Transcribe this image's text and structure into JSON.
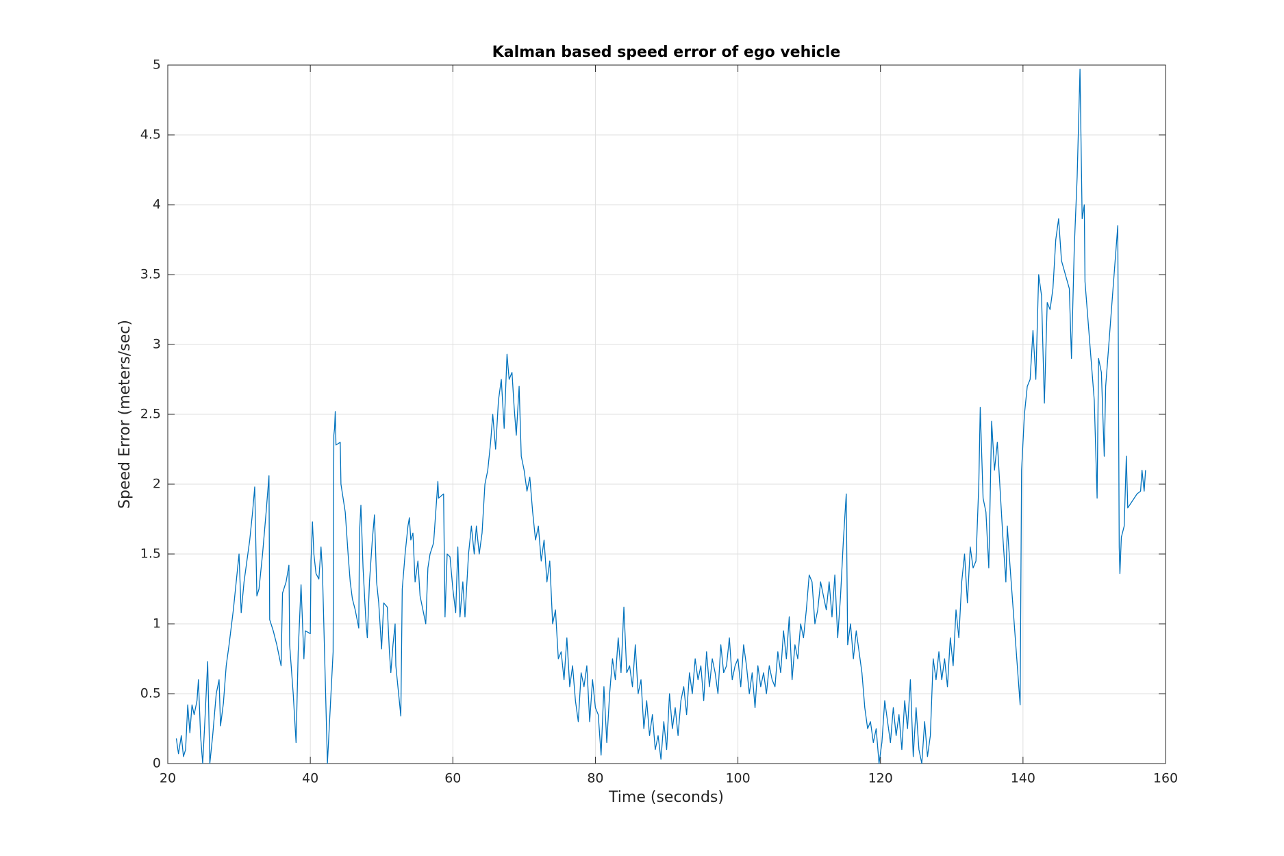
{
  "chart_data": {
    "type": "line",
    "title": "Kalman based speed error of ego vehicle",
    "x_label": "Time (seconds)",
    "y_label": "Speed Error (meters/sec)",
    "color": "#0072bd",
    "grid": true,
    "xlim": [
      20,
      160
    ],
    "xticks": [
      20,
      40,
      60,
      80,
      100,
      120,
      140,
      160
    ],
    "ylim": [
      0,
      5
    ],
    "yticks": [
      0,
      0.5,
      1,
      1.5,
      2,
      2.5,
      3,
      3.5,
      4,
      4.5,
      5
    ],
    "x": [
      21.2,
      21.5,
      21.9,
      22.2,
      22.5,
      22.8,
      23.1,
      23.4,
      23.7,
      24.1,
      24.3,
      24.6,
      24.9,
      25.2,
      25.6,
      25.9,
      26.3,
      26.8,
      27.2,
      27.4,
      27.8,
      28.2,
      28.6,
      29.2,
      29.6,
      30,
      30.3,
      30.7,
      31.1,
      31.5,
      31.9,
      32.2,
      32.5,
      32.8,
      33.3,
      33.8,
      34.2,
      34.3,
      34.8,
      35.3,
      35.9,
      36.1,
      36.6,
      37,
      37.1,
      37.6,
      38,
      38.3,
      38.7,
      39.1,
      39.3,
      40,
      40.1,
      40.3,
      40.5,
      40.8,
      41.2,
      41.5,
      41.7,
      42.3,
      42.4,
      42.9,
      43.2,
      43.3,
      43.4,
      43.5,
      43.6,
      44.2,
      44.3,
      44.9,
      45.3,
      45.6,
      45.9,
      46.3,
      46.8,
      46.9,
      47.1,
      47.4,
      47.8,
      48,
      48.3,
      48.7,
      49,
      49.3,
      49.6,
      50,
      50.3,
      50.8,
      51.1,
      51.3,
      51.6,
      51.9,
      52,
      52.7,
      52.9,
      53.3,
      53.7,
      53.9,
      54.1,
      54.4,
      54.7,
      55.1,
      55.4,
      55.8,
      56.2,
      56.5,
      56.8,
      57.3,
      57.6,
      57.9,
      58,
      58.7,
      58.9,
      59.2,
      59.6,
      60,
      60.4,
      60.7,
      61,
      61.4,
      61.7,
      62.2,
      62.6,
      63,
      63.3,
      63.7,
      64.1,
      64.5,
      64.9,
      65.3,
      65.6,
      66,
      66.4,
      66.8,
      67.2,
      67.6,
      67.9,
      68.3,
      68.6,
      68.9,
      69.3,
      69.6,
      70,
      70.4,
      70.8,
      71.2,
      71.6,
      72,
      72.4,
      72.8,
      73.2,
      73.6,
      74,
      74.4,
      74.8,
      75.2,
      75.6,
      76,
      76.4,
      76.8,
      77.2,
      77.6,
      78,
      78.4,
      78.8,
      79.2,
      79.6,
      80,
      80.4,
      80.8,
      81.2,
      81.6,
      82,
      82.4,
      82.8,
      83.2,
      83.6,
      84,
      84.4,
      84.8,
      85.2,
      85.6,
      86,
      86.4,
      86.8,
      87.2,
      87.6,
      88,
      88.4,
      88.8,
      89.2,
      89.6,
      90,
      90.4,
      90.8,
      91.2,
      91.6,
      92,
      92.4,
      92.8,
      93.2,
      93.6,
      94,
      94.4,
      94.8,
      95.2,
      95.6,
      96,
      96.4,
      96.8,
      97.2,
      97.6,
      98,
      98.4,
      98.8,
      99.2,
      99.6,
      100,
      100.4,
      100.8,
      101.2,
      101.6,
      102,
      102.4,
      102.8,
      103.2,
      103.6,
      104,
      104.4,
      104.8,
      105.2,
      105.6,
      106,
      106.4,
      106.8,
      107.2,
      107.6,
      108,
      108.4,
      108.8,
      109.2,
      109.6,
      110,
      110.4,
      110.8,
      111.2,
      111.6,
      112,
      112.4,
      112.8,
      113.2,
      113.6,
      114,
      114.4,
      114.8,
      115.2,
      115.4,
      115.8,
      116.2,
      116.6,
      117,
      117.4,
      117.8,
      118.2,
      118.6,
      119,
      119.4,
      119.8,
      120.2,
      120.6,
      121,
      121.4,
      121.8,
      122.2,
      122.6,
      123,
      123.4,
      123.8,
      124.2,
      124.6,
      125,
      125.4,
      125.8,
      126.2,
      126.6,
      127,
      127.4,
      127.8,
      128.2,
      128.6,
      129,
      129.4,
      129.8,
      130.2,
      130.6,
      131,
      131.4,
      131.8,
      132.2,
      132.6,
      133,
      133.4,
      133.8,
      134,
      134.4,
      134.8,
      135.2,
      135.6,
      136,
      136.4,
      136.8,
      137.2,
      137.6,
      137.8,
      138.2,
      139.6,
      139.8,
      140.2,
      140.6,
      141,
      141.4,
      141.8,
      142.2,
      142.6,
      143,
      143.4,
      143.8,
      144.2,
      144.6,
      145,
      145.4,
      146.5,
      146.8,
      147.2,
      147.6,
      148,
      148.3,
      148.6,
      148.7,
      150,
      150.4,
      150.6,
      151,
      151.4,
      151.6,
      153.3,
      153.5,
      153.6,
      153.8,
      154.2,
      154.5,
      154.7,
      156,
      156.5,
      156.7,
      157,
      157.2
    ],
    "values": [
      0.18,
      0.07,
      0.2,
      0.05,
      0.1,
      0.42,
      0.22,
      0.42,
      0.35,
      0.45,
      0.6,
      0.2,
      0,
      0.3,
      0.73,
      0,
      0.2,
      0.5,
      0.6,
      0.27,
      0.43,
      0.7,
      0.85,
      1.1,
      1.3,
      1.5,
      1.08,
      1.3,
      1.45,
      1.6,
      1.8,
      1.98,
      1.2,
      1.25,
      1.5,
      1.8,
      2.06,
      1.03,
      0.95,
      0.85,
      0.7,
      1.22,
      1.3,
      1.42,
      0.85,
      0.5,
      0.15,
      0.8,
      1.28,
      0.75,
      0.95,
      0.93,
      1.45,
      1.73,
      1.5,
      1.36,
      1.32,
      1.55,
      1.38,
      0.2,
      0,
      0.5,
      0.8,
      2.35,
      2.4,
      2.52,
      2.28,
      2.3,
      2,
      1.8,
      1.5,
      1.3,
      1.18,
      1.1,
      0.97,
      1.65,
      1.85,
      1.4,
      1.02,
      0.9,
      1.3,
      1.6,
      1.78,
      1.3,
      1.15,
      0.82,
      1.15,
      1.12,
      0.8,
      0.65,
      0.85,
      1,
      0.7,
      0.34,
      1.25,
      1.5,
      1.7,
      1.76,
      1.6,
      1.65,
      1.3,
      1.45,
      1.2,
      1.1,
      1,
      1.4,
      1.5,
      1.58,
      1.8,
      2.02,
      1.9,
      1.93,
      1.05,
      1.5,
      1.48,
      1.25,
      1.08,
      1.55,
      1.05,
      1.3,
      1.05,
      1.5,
      1.7,
      1.5,
      1.7,
      1.5,
      1.65,
      2,
      2.1,
      2.3,
      2.5,
      2.25,
      2.6,
      2.75,
      2.4,
      2.93,
      2.75,
      2.8,
      2.55,
      2.35,
      2.7,
      2.2,
      2.1,
      1.95,
      2.05,
      1.8,
      1.6,
      1.7,
      1.45,
      1.6,
      1.3,
      1.45,
      1,
      1.1,
      0.75,
      0.8,
      0.6,
      0.9,
      0.55,
      0.7,
      0.45,
      0.3,
      0.65,
      0.55,
      0.7,
      0.3,
      0.6,
      0.4,
      0.35,
      0.06,
      0.55,
      0.15,
      0.5,
      0.75,
      0.6,
      0.9,
      0.65,
      1.12,
      0.65,
      0.7,
      0.55,
      0.85,
      0.5,
      0.6,
      0.25,
      0.45,
      0.2,
      0.35,
      0.1,
      0.2,
      0.03,
      0.3,
      0.1,
      0.5,
      0.25,
      0.4,
      0.2,
      0.45,
      0.55,
      0.35,
      0.65,
      0.5,
      0.75,
      0.6,
      0.7,
      0.45,
      0.8,
      0.55,
      0.75,
      0.65,
      0.5,
      0.85,
      0.65,
      0.7,
      0.9,
      0.6,
      0.7,
      0.75,
      0.55,
      0.85,
      0.7,
      0.5,
      0.65,
      0.4,
      0.7,
      0.55,
      0.65,
      0.5,
      0.7,
      0.6,
      0.55,
      0.8,
      0.65,
      0.95,
      0.75,
      1.05,
      0.6,
      0.85,
      0.75,
      1,
      0.9,
      1.1,
      1.35,
      1.3,
      1,
      1.1,
      1.3,
      1.2,
      1.1,
      1.3,
      1.05,
      1.35,
      0.9,
      1.2,
      1.6,
      1.93,
      0.85,
      1,
      0.75,
      0.95,
      0.8,
      0.65,
      0.4,
      0.25,
      0.3,
      0.15,
      0.25,
      0,
      0.15,
      0.45,
      0.3,
      0.15,
      0.4,
      0.2,
      0.35,
      0.1,
      0.45,
      0.25,
      0.6,
      0.05,
      0.4,
      0.1,
      0,
      0.3,
      0.05,
      0.2,
      0.75,
      0.6,
      0.8,
      0.6,
      0.75,
      0.55,
      0.9,
      0.7,
      1.1,
      0.9,
      1.3,
      1.5,
      1.15,
      1.55,
      1.4,
      1.45,
      2,
      2.55,
      1.9,
      1.8,
      1.4,
      2.45,
      2.1,
      2.3,
      1.95,
      1.6,
      1.3,
      1.7,
      1.4,
      0.42,
      2.1,
      2.5,
      2.7,
      2.75,
      3.1,
      2.75,
      3.5,
      3.35,
      2.58,
      3.3,
      3.25,
      3.4,
      3.75,
      3.9,
      3.6,
      3.4,
      2.9,
      3.7,
      4.2,
      4.97,
      3.9,
      4,
      3.45,
      2.6,
      1.9,
      2.9,
      2.8,
      2.2,
      2.7,
      3.85,
      1.55,
      1.36,
      1.62,
      1.7,
      2.2,
      1.83,
      1.93,
      1.95,
      2.1,
      1.95,
      2.1
    ]
  }
}
